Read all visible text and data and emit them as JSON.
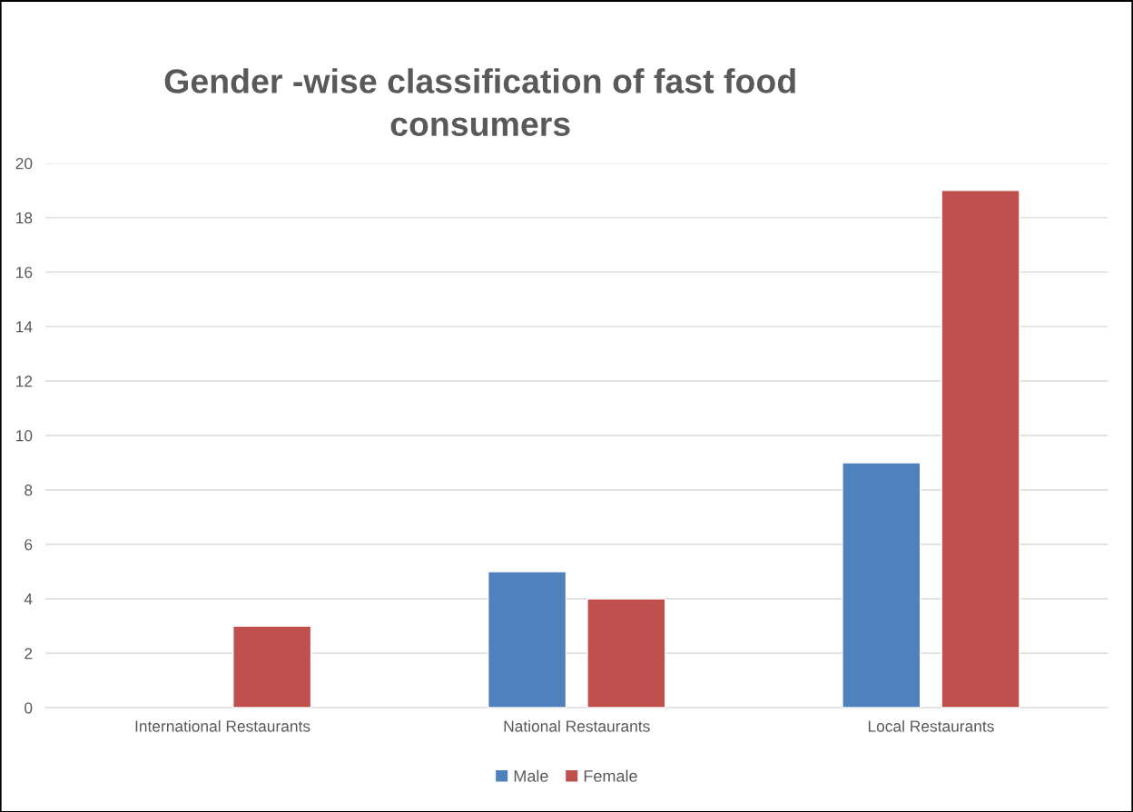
{
  "chart_data": {
    "type": "bar",
    "title": "Gender -wise classification of fast food consumers",
    "categories": [
      "International Restaurants",
      "National Restaurants",
      "Local Restaurants"
    ],
    "series": [
      {
        "name": "Male",
        "color": "#4f81bd",
        "values": [
          null,
          5,
          9
        ]
      },
      {
        "name": "Female",
        "color": "#c0504d",
        "values": [
          3,
          4,
          19
        ]
      }
    ],
    "ylim": [
      0,
      20
    ],
    "yticks": [
      0,
      2,
      4,
      6,
      8,
      10,
      12,
      14,
      16,
      18,
      20
    ],
    "grid": "y",
    "legend": "bottom"
  }
}
